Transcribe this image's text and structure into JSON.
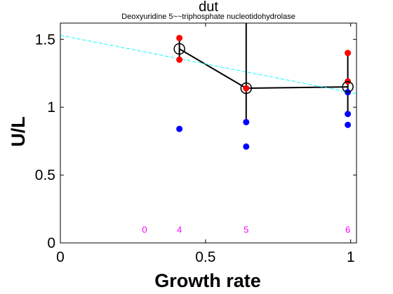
{
  "chart_data": {
    "type": "scatter",
    "title": "dut",
    "subtitle": "Deoxyuridine 5~~triphosphate nucleotidohydrolase",
    "xlabel": "Growth rate",
    "ylabel": "U/L",
    "xlim": [
      0,
      1.02
    ],
    "ylim": [
      0,
      1.62
    ],
    "x_ticks": [
      {
        "value": 0,
        "label": "0"
      },
      {
        "value": 0.5,
        "label": "0.5"
      },
      {
        "value": 1,
        "label": "1"
      }
    ],
    "y_ticks": [
      {
        "value": 0,
        "label": "0"
      },
      {
        "value": 0.5,
        "label": "0.5"
      },
      {
        "value": 1,
        "label": "1"
      },
      {
        "value": 1.5,
        "label": "1.5"
      }
    ],
    "grid": false,
    "series": [
      {
        "color": "#ff0000",
        "marker": "filled-circle",
        "points": [
          {
            "x": 0.41,
            "y": 1.51
          },
          {
            "x": 0.41,
            "y": 1.35
          },
          {
            "x": 0.64,
            "y": 1.14
          },
          {
            "x": 0.99,
            "y": 1.4
          },
          {
            "x": 0.99,
            "y": 1.19
          }
        ]
      },
      {
        "color": "#0000ff",
        "marker": "filled-circle",
        "points": [
          {
            "x": 0.41,
            "y": 0.84
          },
          {
            "x": 0.64,
            "y": 0.89
          },
          {
            "x": 0.64,
            "y": 0.71
          },
          {
            "x": 0.99,
            "y": 1.11
          },
          {
            "x": 0.99,
            "y": 0.95
          },
          {
            "x": 0.99,
            "y": 0.87
          }
        ]
      },
      {
        "color": "#000000",
        "marker": "open-circle",
        "line": "solid",
        "points": [
          {
            "x": 0.41,
            "y": 1.43
          },
          {
            "x": 0.64,
            "y": 1.14
          },
          {
            "x": 0.99,
            "y": 1.15
          }
        ],
        "errorbars": [
          {
            "x": 0.41,
            "low": 1.35,
            "high": 1.51
          },
          {
            "x": 0.64,
            "low": 0.89,
            "high": 1.62
          },
          {
            "x": 0.99,
            "low": 0.95,
            "high": 1.4
          }
        ]
      },
      {
        "color": "#00ffff",
        "line": "dashed",
        "points": [
          {
            "x": 0,
            "y": 1.53
          },
          {
            "x": 1.02,
            "y": 1.1
          }
        ]
      }
    ],
    "count_labels": [
      {
        "x": 0.29,
        "label": "0"
      },
      {
        "x": 0.41,
        "label": "4"
      },
      {
        "x": 0.64,
        "label": "5"
      },
      {
        "x": 0.99,
        "label": "6"
      }
    ],
    "count_label_y": 0.1,
    "count_label_color": "#ff00ff"
  }
}
